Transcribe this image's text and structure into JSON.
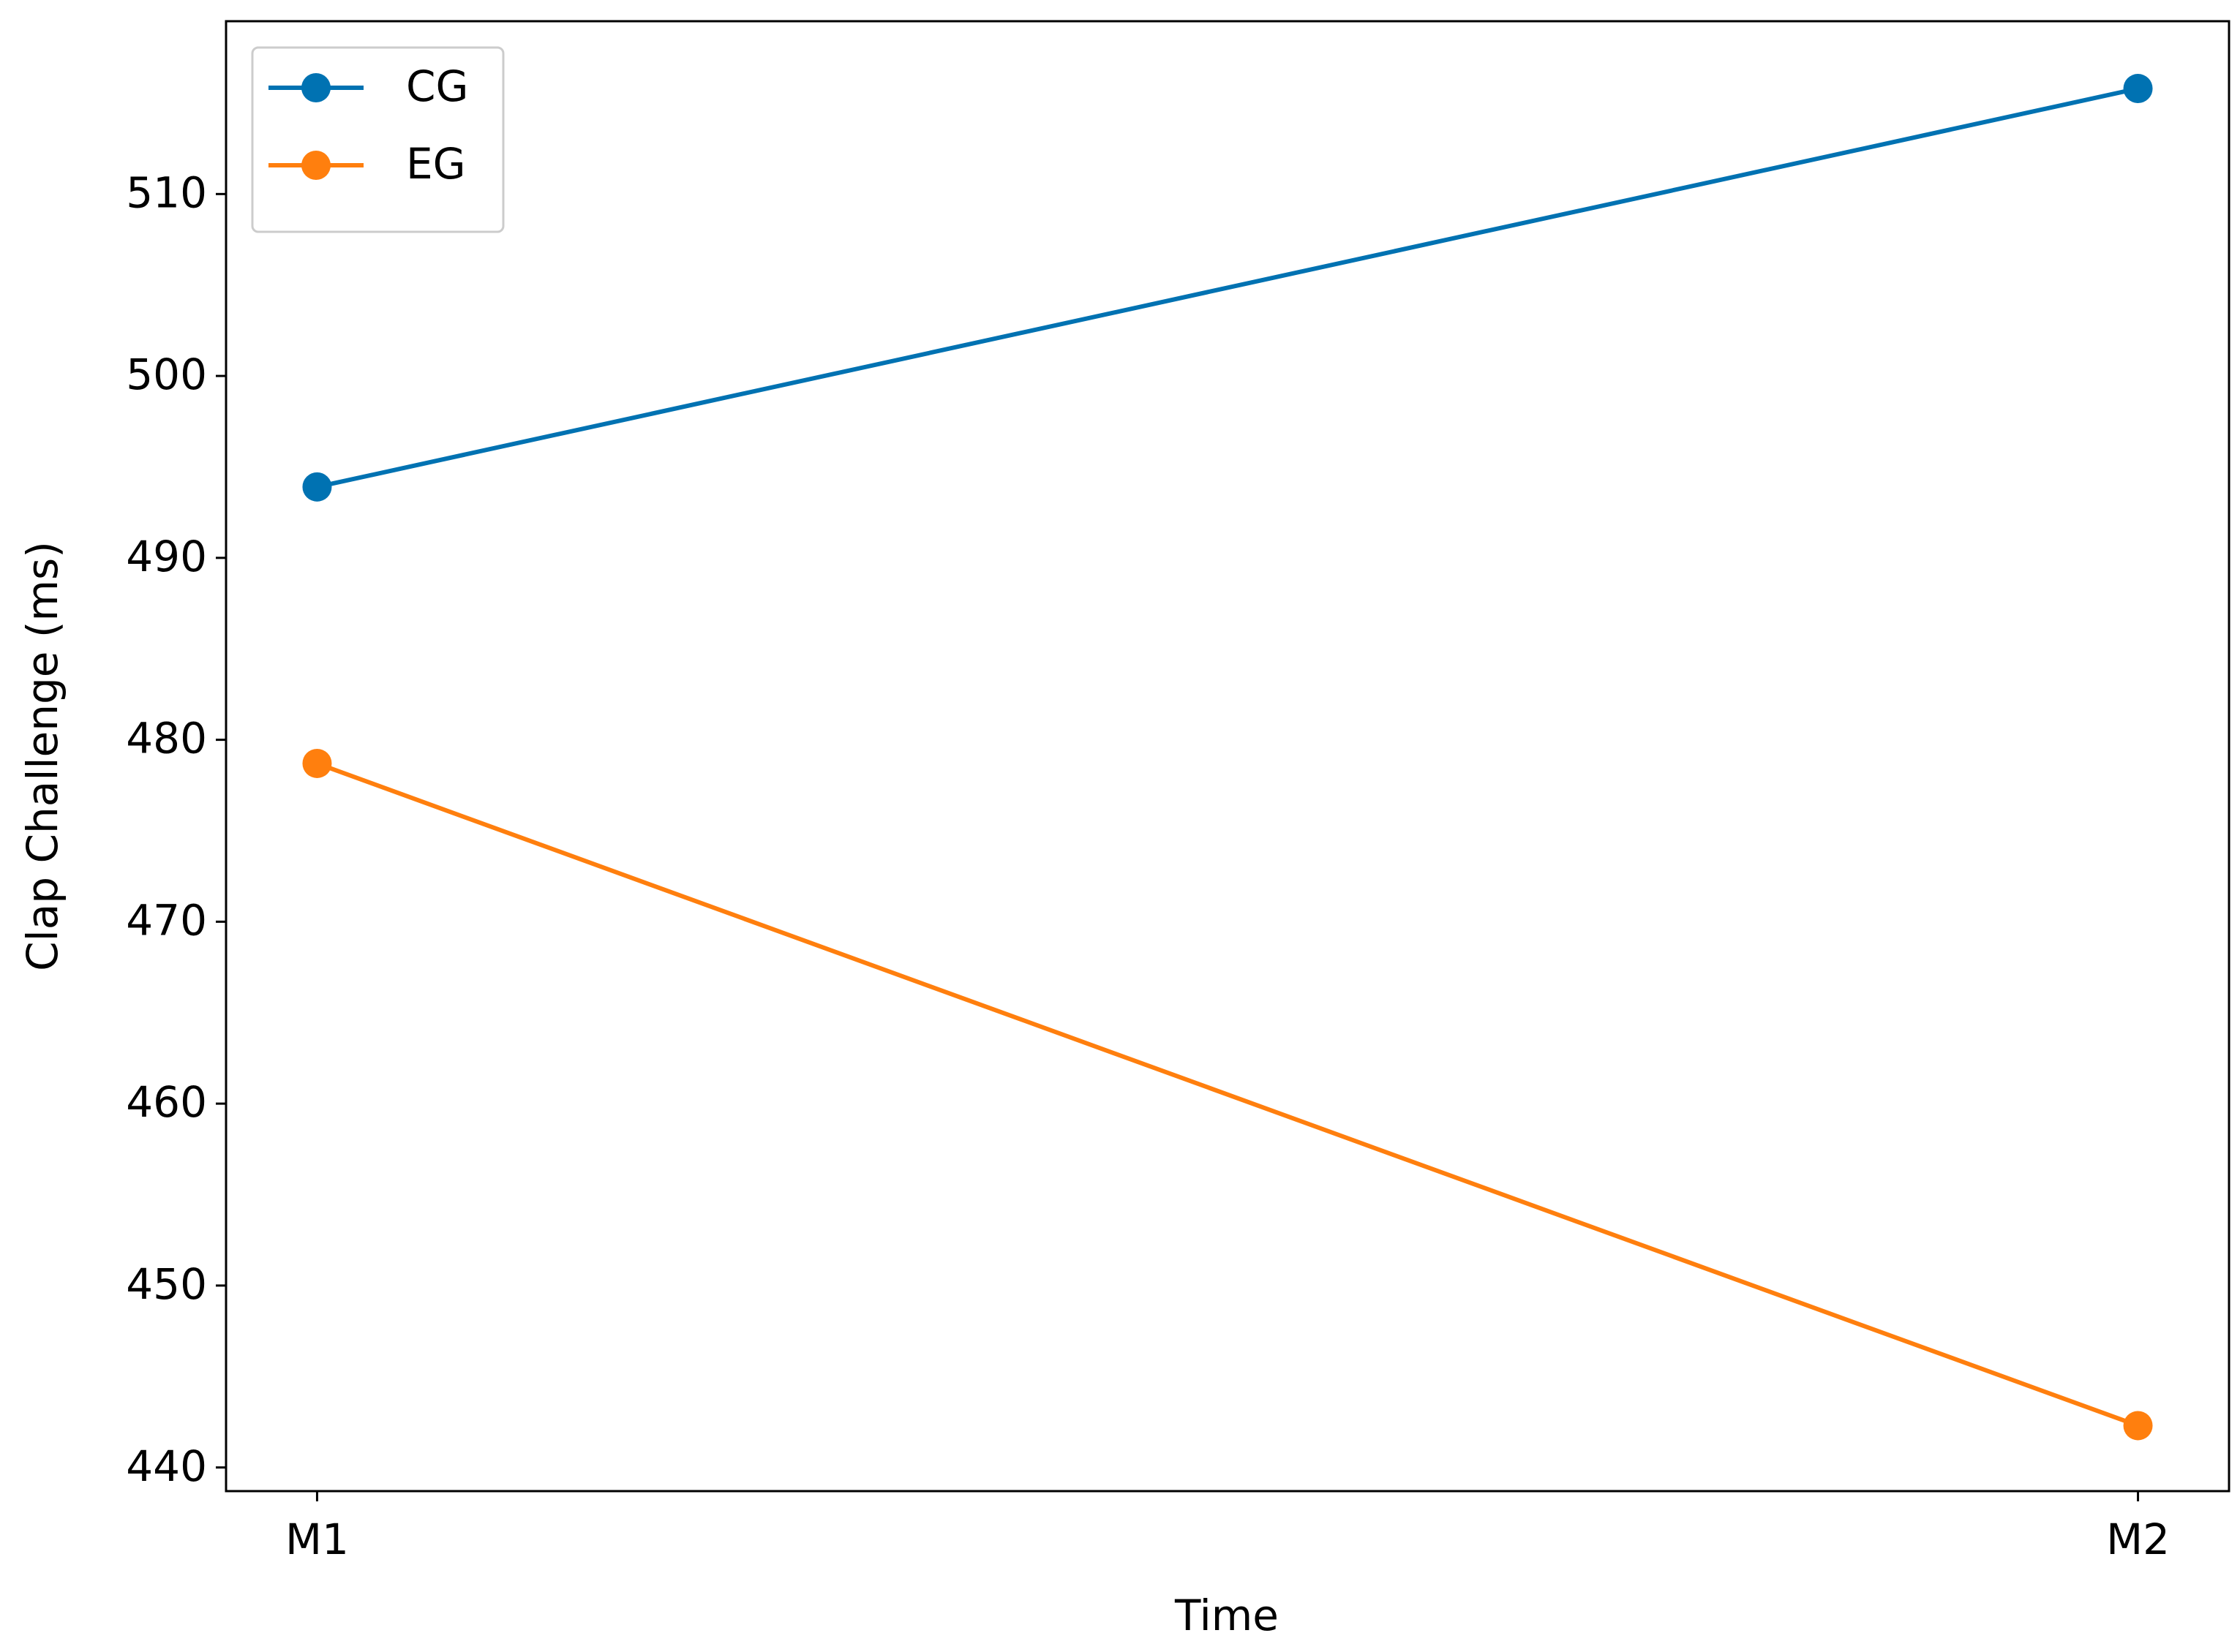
{
  "chart_data": {
    "type": "line",
    "x_label": "Time",
    "y_label": "Clap Challenge (ms)",
    "categories": [
      "M1",
      "M2"
    ],
    "series": [
      {
        "name": "CG",
        "color": "#0072b2",
        "values": [
          493.9,
          515.8
        ]
      },
      {
        "name": "EG",
        "color": "#ff7f0e",
        "values": [
          478.7,
          442.3
        ]
      }
    ],
    "ylim": [
      438.7,
      519.5
    ],
    "yticks": [
      440,
      450,
      460,
      470,
      480,
      490,
      500,
      510
    ],
    "grid": false,
    "legend": "upper left"
  }
}
